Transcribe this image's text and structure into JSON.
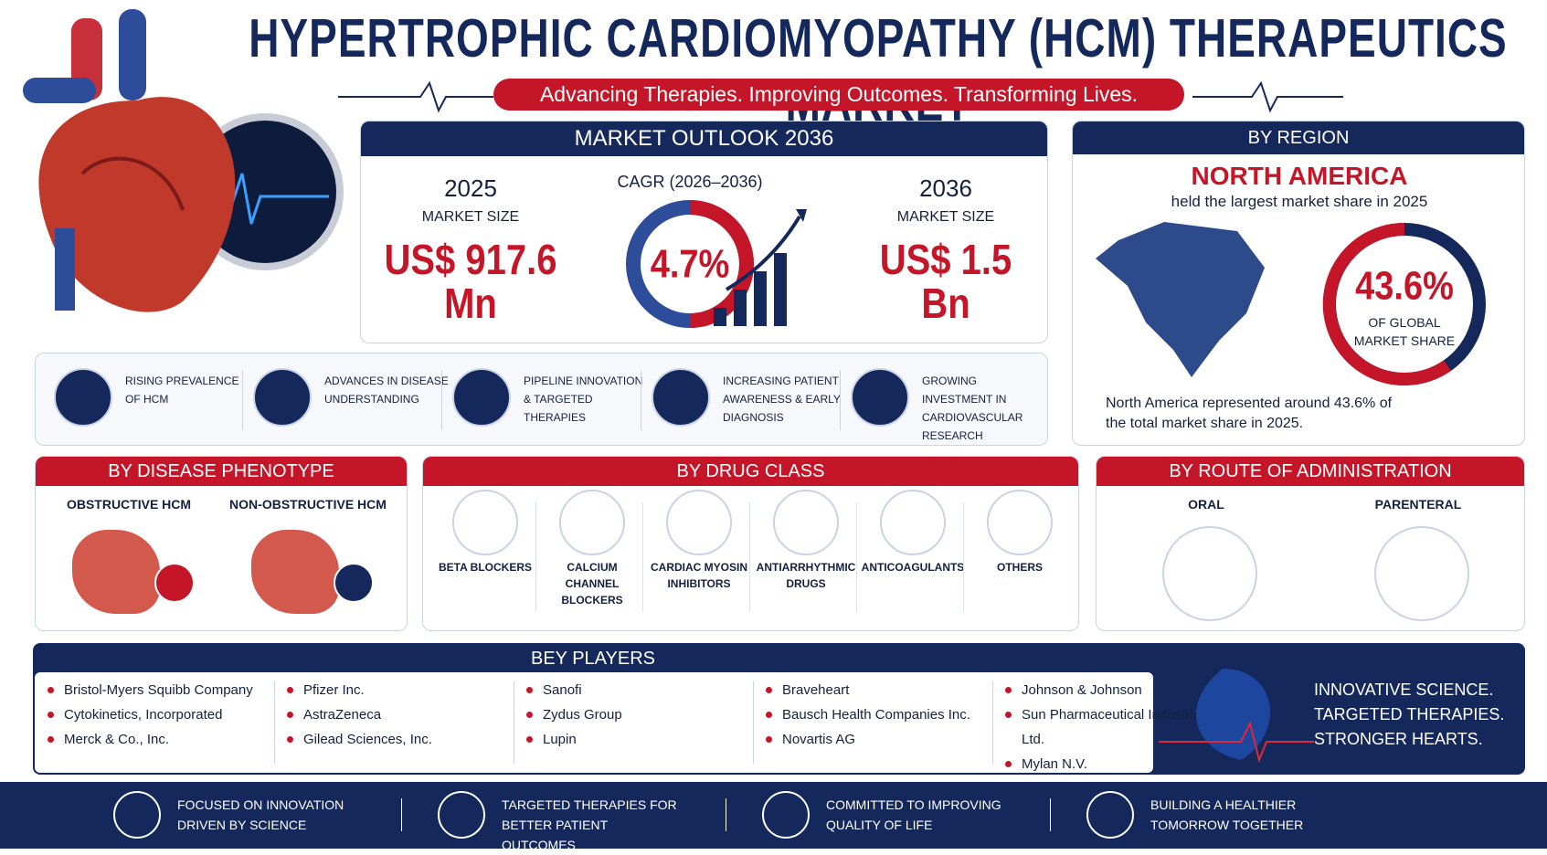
{
  "header": {
    "title": "HYPERTROPHIC CARDIOMYOPATHY (HCM) THERAPEUTICS MARKET",
    "tagline": "Advancing Therapies. Improving Outcomes. Transforming Lives."
  },
  "outlook": {
    "title": "MARKET OUTLOOK 2036",
    "start": {
      "year": "2025",
      "label": "MARKET SIZE",
      "value": "US$ 917.6",
      "unit": "Mn"
    },
    "cagr": {
      "label": "CAGR (2026–2036)",
      "value": "4.7%"
    },
    "end": {
      "year": "2036",
      "label": "MARKET SIZE",
      "value": "US$ 1.5",
      "unit": "Bn"
    }
  },
  "region": {
    "title": "BY REGION",
    "name": "NORTH AMERICA",
    "subtitle": "held the largest market share in 2025",
    "share": "43.6%",
    "share_label": "OF GLOBAL MARKET SHARE",
    "note": "North America represented around 43.6% of the total market share in 2025."
  },
  "drivers": [
    "RISING PREVALENCE OF HCM",
    "ADVANCES IN DISEASE UNDERSTANDING",
    "PIPELINE INNOVATION & TARGETED THERAPIES",
    "INCREASING PATIENT AWARENESS & EARLY DIAGNOSIS",
    "GROWING INVESTMENT IN CARDIOVASCULAR RESEARCH"
  ],
  "phenotype": {
    "title": "BY DISEASE PHENOTYPE",
    "items": [
      "OBSTRUCTIVE HCM",
      "NON-OBSTRUCTIVE HCM"
    ]
  },
  "drug_class": {
    "title": "BY DRUG CLASS",
    "items": [
      "BETA BLOCKERS",
      "CALCIUM CHANNEL BLOCKERS",
      "CARDIAC MYOSIN INHIBITORS",
      "ANTIARRHYTHMIC DRUGS",
      "ANTICOAGULANTS",
      "OTHERS"
    ]
  },
  "route": {
    "title": "BY ROUTE OF ADMINISTRATION",
    "items": [
      "ORAL",
      "PARENTERAL"
    ]
  },
  "players": {
    "title": "BEY PLAYERS",
    "columns": [
      [
        "Bristol-Myers Squibb Company",
        "Cytokinetics, Incorporated",
        "Merck & Co., Inc."
      ],
      [
        "Pfizer Inc.",
        "AstraZeneca",
        "Gilead Sciences, Inc."
      ],
      [
        "Sanofi",
        "Zydus Group",
        "Lupin"
      ],
      [
        "Braveheart",
        "Bausch Health Companies Inc.",
        "Novartis AG"
      ],
      [
        "Johnson & Johnson",
        "Sun Pharmaceutical Industries Ltd.",
        "Mylan N.V."
      ]
    ]
  },
  "slogan": [
    "INNOVATIVE SCIENCE.",
    "TARGETED THERAPIES.",
    "STRONGER HEARTS."
  ],
  "footer": [
    "FOCUSED ON INNOVATION DRIVEN BY SCIENCE",
    "TARGETED THERAPIES FOR BETTER PATIENT OUTCOMES",
    "COMMITTED TO IMPROVING QUALITY OF LIFE",
    "BUILDING A HEALTHIER TOMORROW TOGETHER"
  ]
}
